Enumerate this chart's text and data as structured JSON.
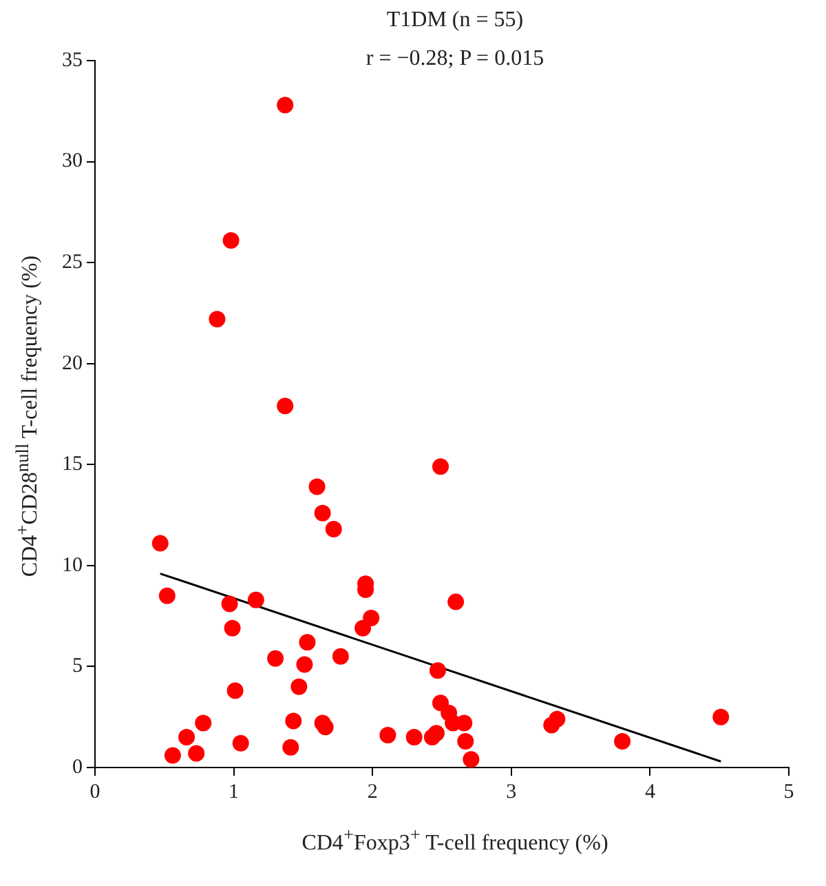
{
  "chart_data": {
    "type": "scatter",
    "title": "T1DM (n = 55)",
    "subtitle": "r = −0.28; P = 0.015",
    "xlabel": "CD4$^{+}$Foxp3$^{+}$ T-cell frequency (%)",
    "ylabel": "CD4$^{+}$CD28$^{null}$ T-cell frequency (%)",
    "xlim": [
      0,
      5
    ],
    "xticks": [
      0,
      1,
      2,
      3,
      4,
      5
    ],
    "ylim": [
      0,
      35
    ],
    "yticks": [
      0,
      5,
      10,
      15,
      20,
      25,
      30,
      35
    ],
    "grid": false,
    "legend": false,
    "series": [
      {
        "type": "scatter",
        "color": "#ff0000",
        "marker": "circle",
        "x": [
          0.47,
          0.52,
          0.56,
          0.66,
          0.73,
          0.78,
          0.88,
          0.97,
          0.99,
          0.98,
          1.01,
          1.05,
          1.16,
          1.3,
          1.37,
          1.37,
          1.41,
          1.43,
          1.47,
          1.51,
          1.53,
          1.6,
          1.64,
          1.64,
          1.66,
          1.72,
          1.77,
          1.93,
          1.95,
          1.95,
          1.99,
          2.11,
          2.3,
          2.43,
          2.46,
          2.47,
          2.49,
          2.49,
          2.55,
          2.58,
          2.6,
          2.66,
          2.67,
          2.71,
          3.29,
          3.33,
          3.8,
          4.51
        ],
        "values": [
          11.1,
          8.5,
          0.6,
          1.5,
          0.7,
          2.2,
          22.2,
          8.1,
          6.9,
          26.1,
          3.8,
          1.2,
          8.3,
          5.4,
          17.9,
          32.8,
          1.0,
          2.3,
          4.0,
          5.1,
          6.2,
          13.9,
          12.6,
          2.2,
          2.0,
          11.8,
          5.5,
          6.9,
          9.1,
          8.8,
          7.4,
          1.6,
          1.5,
          1.5,
          1.7,
          4.8,
          14.9,
          3.2,
          2.7,
          2.2,
          8.2,
          2.2,
          1.3,
          0.4,
          2.1,
          2.4,
          1.3,
          2.5
        ]
      },
      {
        "type": "line",
        "color": "#000000",
        "marker": "none",
        "line_style": "solid",
        "x": [
          0.47,
          4.51
        ],
        "values": [
          9.6,
          0.3
        ]
      }
    ]
  }
}
